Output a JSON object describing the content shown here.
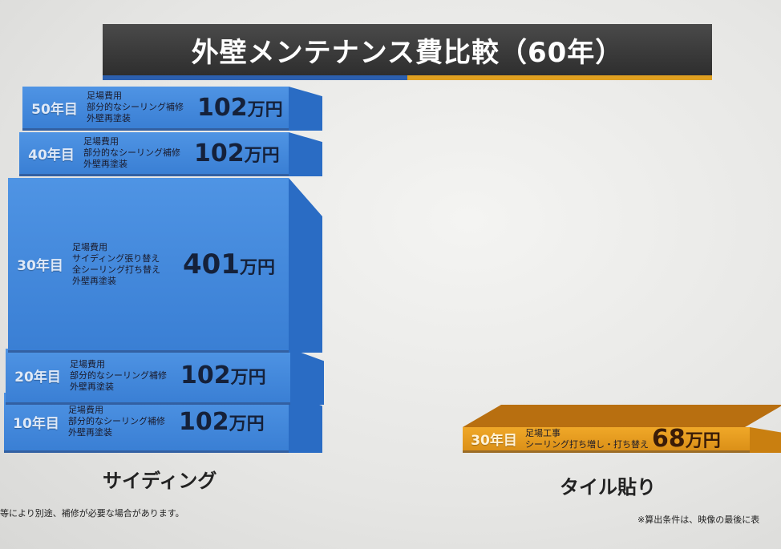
{
  "title": "外壁メンテナンス費比較（60年）",
  "colors": {
    "siding": "#3f86d8",
    "tile": "#e39a1c",
    "title_bg": "#333333",
    "title_line_blue": "#2c5fae",
    "title_line_orange": "#e0a020"
  },
  "chart_data": {
    "type": "bar",
    "title": "外壁メンテナンス費比較（60年）",
    "unit": "万円",
    "bars": [
      {
        "name": "サイディング",
        "segments": [
          {
            "year": "10年目",
            "items": [
              "足場費用",
              "部分的なシーリング補修",
              "外壁再塗装"
            ],
            "value": 102
          },
          {
            "year": "20年目",
            "items": [
              "足場費用",
              "部分的なシーリング補修",
              "外壁再塗装"
            ],
            "value": 102
          },
          {
            "year": "30年目",
            "items": [
              "足場費用",
              "サイディング張り替え",
              "全シーリング打ち替え",
              "外壁再塗装"
            ],
            "value": 401
          },
          {
            "year": "40年目",
            "items": [
              "足場費用",
              "部分的なシーリング補修",
              "外壁再塗装"
            ],
            "value": 102
          },
          {
            "year": "50年目",
            "items": [
              "足場費用",
              "部分的なシーリング補修",
              "外壁再塗装"
            ],
            "value": 102
          }
        ]
      },
      {
        "name": "タイル貼り",
        "segments": [
          {
            "year": "30年目",
            "items": [
              "足場工事",
              "シーリング打ち増し・打ち替え"
            ],
            "value": 68
          }
        ]
      }
    ]
  },
  "notes": {
    "left": "等により別途、補修が必要な場合があります。",
    "right": "※算出条件は、映像の最後に表"
  }
}
